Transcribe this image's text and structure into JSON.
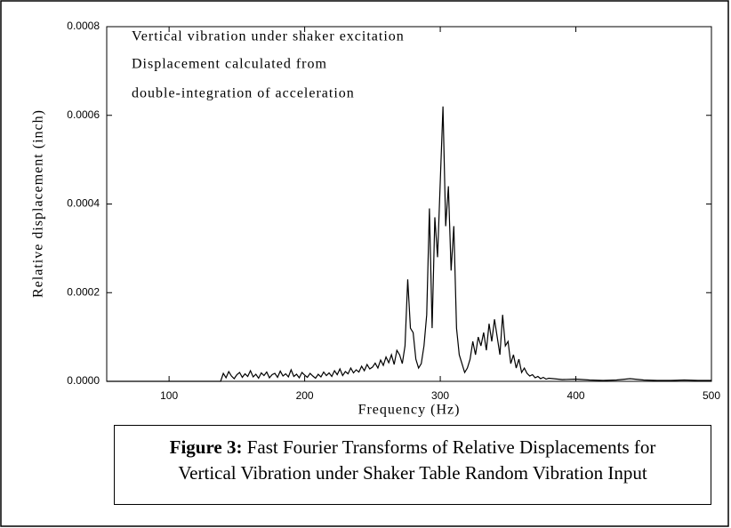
{
  "chart_data": {
    "type": "line",
    "annotations": [
      "Vertical vibration under shaker excitation",
      "Displacement calculated from",
      "double-integration of acceleration"
    ],
    "xlabel": "Frequency (Hz)",
    "ylabel": "Relative displacement (inch)",
    "x": [
      54,
      138,
      140,
      142,
      144,
      146,
      148,
      150,
      152,
      154,
      156,
      158,
      160,
      162,
      164,
      166,
      168,
      170,
      172,
      174,
      176,
      178,
      180,
      182,
      184,
      186,
      188,
      190,
      192,
      194,
      196,
      198,
      200,
      202,
      204,
      206,
      208,
      210,
      212,
      214,
      216,
      218,
      220,
      222,
      224,
      226,
      228,
      230,
      232,
      234,
      236,
      238,
      240,
      242,
      244,
      246,
      248,
      250,
      252,
      254,
      256,
      258,
      260,
      262,
      264,
      266,
      268,
      270,
      272,
      274,
      276,
      278,
      280,
      282,
      284,
      286,
      288,
      290,
      292,
      294,
      296,
      298,
      300,
      302,
      304,
      306,
      308,
      310,
      312,
      314,
      316,
      318,
      320,
      322,
      324,
      326,
      328,
      330,
      332,
      334,
      336,
      338,
      340,
      342,
      344,
      346,
      348,
      350,
      352,
      354,
      356,
      358,
      360,
      362,
      364,
      366,
      368,
      370,
      372,
      374,
      376,
      378,
      380,
      390,
      400,
      410,
      420,
      430,
      440,
      450,
      460,
      470,
      480,
      490,
      500
    ],
    "values": [
      0,
      0,
      1.8e-05,
      8e-06,
      2.2e-05,
      1.2e-05,
      6e-06,
      1.5e-05,
      2e-05,
      9e-06,
      1.7e-05,
      1.1e-05,
      2.4e-05,
      1e-05,
      1.6e-05,
      7e-06,
      1.9e-05,
      1.3e-05,
      2.1e-05,
      8e-06,
      1.5e-05,
      1.8e-05,
      9e-06,
      2.3e-05,
      1.2e-05,
      1.7e-05,
      1e-05,
      2.6e-05,
      1.1e-05,
      1.6e-05,
      8e-06,
      2e-05,
      1.4e-05,
      9e-06,
      1.8e-05,
      1.2e-05,
      7e-06,
      1.6e-05,
      1e-05,
      2.1e-05,
      1.3e-05,
      1.9e-05,
      1.1e-05,
      2.4e-05,
      1.5e-05,
      2.8e-05,
      1.3e-05,
      2.2e-05,
      1.7e-05,
      3e-05,
      1.9e-05,
      2.6e-05,
      2.1e-05,
      3.4e-05,
      2.4e-05,
      3.8e-05,
      2.8e-05,
      3.2e-05,
      4.1e-05,
      3e-05,
      4.8e-05,
      3.6e-05,
      5.5e-05,
      4.2e-05,
      6e-05,
      3.8e-05,
      7e-05,
      6e-05,
      4e-05,
      8e-05,
      0.00023,
      0.00012,
      0.00011,
      5e-05,
      3e-05,
      4e-05,
      8e-05,
      0.00015,
      0.00039,
      0.00012,
      0.00037,
      0.00028,
      0.00045,
      0.00062,
      0.00035,
      0.00044,
      0.00025,
      0.00035,
      0.00012,
      6e-05,
      4e-05,
      2e-05,
      3e-05,
      5e-05,
      9e-05,
      6e-05,
      0.0001,
      8e-05,
      0.00011,
      7e-05,
      0.00013,
      9e-05,
      0.00014,
      0.0001,
      6e-05,
      0.00015,
      8e-05,
      9e-05,
      4e-05,
      6e-05,
      3e-05,
      5e-05,
      2e-05,
      3e-05,
      1.8e-05,
      1.2e-05,
      1.5e-05,
      8e-06,
      1.1e-05,
      6e-06,
      9e-06,
      5e-06,
      7e-06,
      4e-06,
      5e-06,
      3e-06,
      2e-06,
      3e-06,
      6e-06,
      3e-06,
      2e-06,
      2e-06,
      3e-06,
      2e-06,
      2e-06
    ],
    "color": "#000000",
    "xlim": [
      54,
      500
    ],
    "xticks": [
      100,
      200,
      300,
      400,
      500
    ],
    "ylim": [
      0,
      0.0008
    ],
    "yticks": [
      {
        "value": 0,
        "label": "0.0000"
      },
      {
        "value": 0.0002,
        "label": "0.0002"
      },
      {
        "value": 0.0004,
        "label": "0.0004"
      },
      {
        "value": 0.0006,
        "label": "0.0006"
      },
      {
        "value": 0.0008,
        "label": "0.0008"
      }
    ],
    "caption": {
      "label": "Figure 3:",
      "text": "Fast Fourier Transforms of Relative Displacements for Vertical Vibration under Shaker Table Random Vibration Input"
    }
  }
}
